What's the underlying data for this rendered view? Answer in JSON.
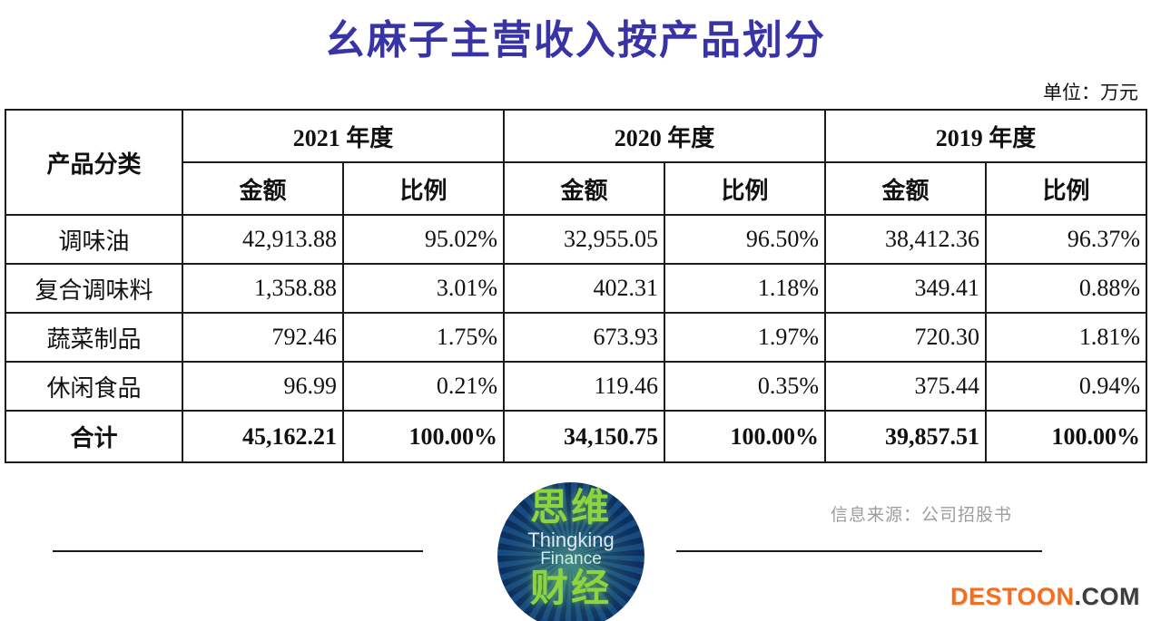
{
  "title": "幺麻子主营收入按产品划分",
  "unit_label": "单位：万元",
  "table": {
    "product_category_header": "产品分类",
    "years": [
      "2021 年度",
      "2020 年度",
      "2019 年度"
    ],
    "amount_header": "金额",
    "ratio_header": "比例",
    "rows": [
      [
        "调味油",
        "42,913.88",
        "95.02%",
        "32,955.05",
        "96.50%",
        "38,412.36",
        "96.37%"
      ],
      [
        "复合调味料",
        "1,358.88",
        "3.01%",
        "402.31",
        "1.18%",
        "349.41",
        "0.88%"
      ],
      [
        "蔬菜制品",
        "792.46",
        "1.75%",
        "673.93",
        "1.97%",
        "720.30",
        "1.81%"
      ],
      [
        "休闲食品",
        "96.99",
        "0.21%",
        "119.46",
        "0.35%",
        "375.44",
        "0.94%"
      ]
    ],
    "total_row": [
      "合计",
      "45,162.21",
      "100.00%",
      "34,150.75",
      "100.00%",
      "39,857.51",
      "100.00%"
    ]
  },
  "footer": {
    "source": "信息来源：公司招股书",
    "logo": {
      "cjk_top": "思维",
      "en_line1": "Thingking",
      "en_line2": "Finance",
      "cjk_bottom": "财经"
    },
    "brand": {
      "name": "DESTOON",
      "suffix": ".COM"
    }
  },
  "colors": {
    "title_blue": "#3834a6",
    "table_border": "#1c1c1c",
    "logo_navy": "#123c70",
    "logo_green": "#8ed43c",
    "source_gray": "#9d9d9d",
    "destoon_orange": "#f36e1e",
    "destoon_dark": "#3d3d3d"
  },
  "chart_data": {
    "type": "table",
    "title": "幺麻子主营收入按产品划分",
    "unit": "万元",
    "categories": [
      "调味油",
      "复合调味料",
      "蔬菜制品",
      "休闲食品",
      "合计"
    ],
    "series": [
      {
        "name": "2021 年度 金额",
        "values": [
          42913.88,
          1358.88,
          792.46,
          96.99,
          45162.21
        ]
      },
      {
        "name": "2021 年度 比例",
        "values": [
          "95.02%",
          "3.01%",
          "1.75%",
          "0.21%",
          "100.00%"
        ]
      },
      {
        "name": "2020 年度 金额",
        "values": [
          32955.05,
          402.31,
          673.93,
          119.46,
          34150.75
        ]
      },
      {
        "name": "2020 年度 比例",
        "values": [
          "96.50%",
          "1.18%",
          "1.97%",
          "0.35%",
          "100.00%"
        ]
      },
      {
        "name": "2019 年度 金额",
        "values": [
          38412.36,
          349.41,
          720.3,
          375.44,
          39857.51
        ]
      },
      {
        "name": "2019 年度 比例",
        "values": [
          "96.37%",
          "0.88%",
          "1.81%",
          "0.94%",
          "100.00%"
        ]
      }
    ],
    "source_note": "信息来源：公司招股书"
  }
}
